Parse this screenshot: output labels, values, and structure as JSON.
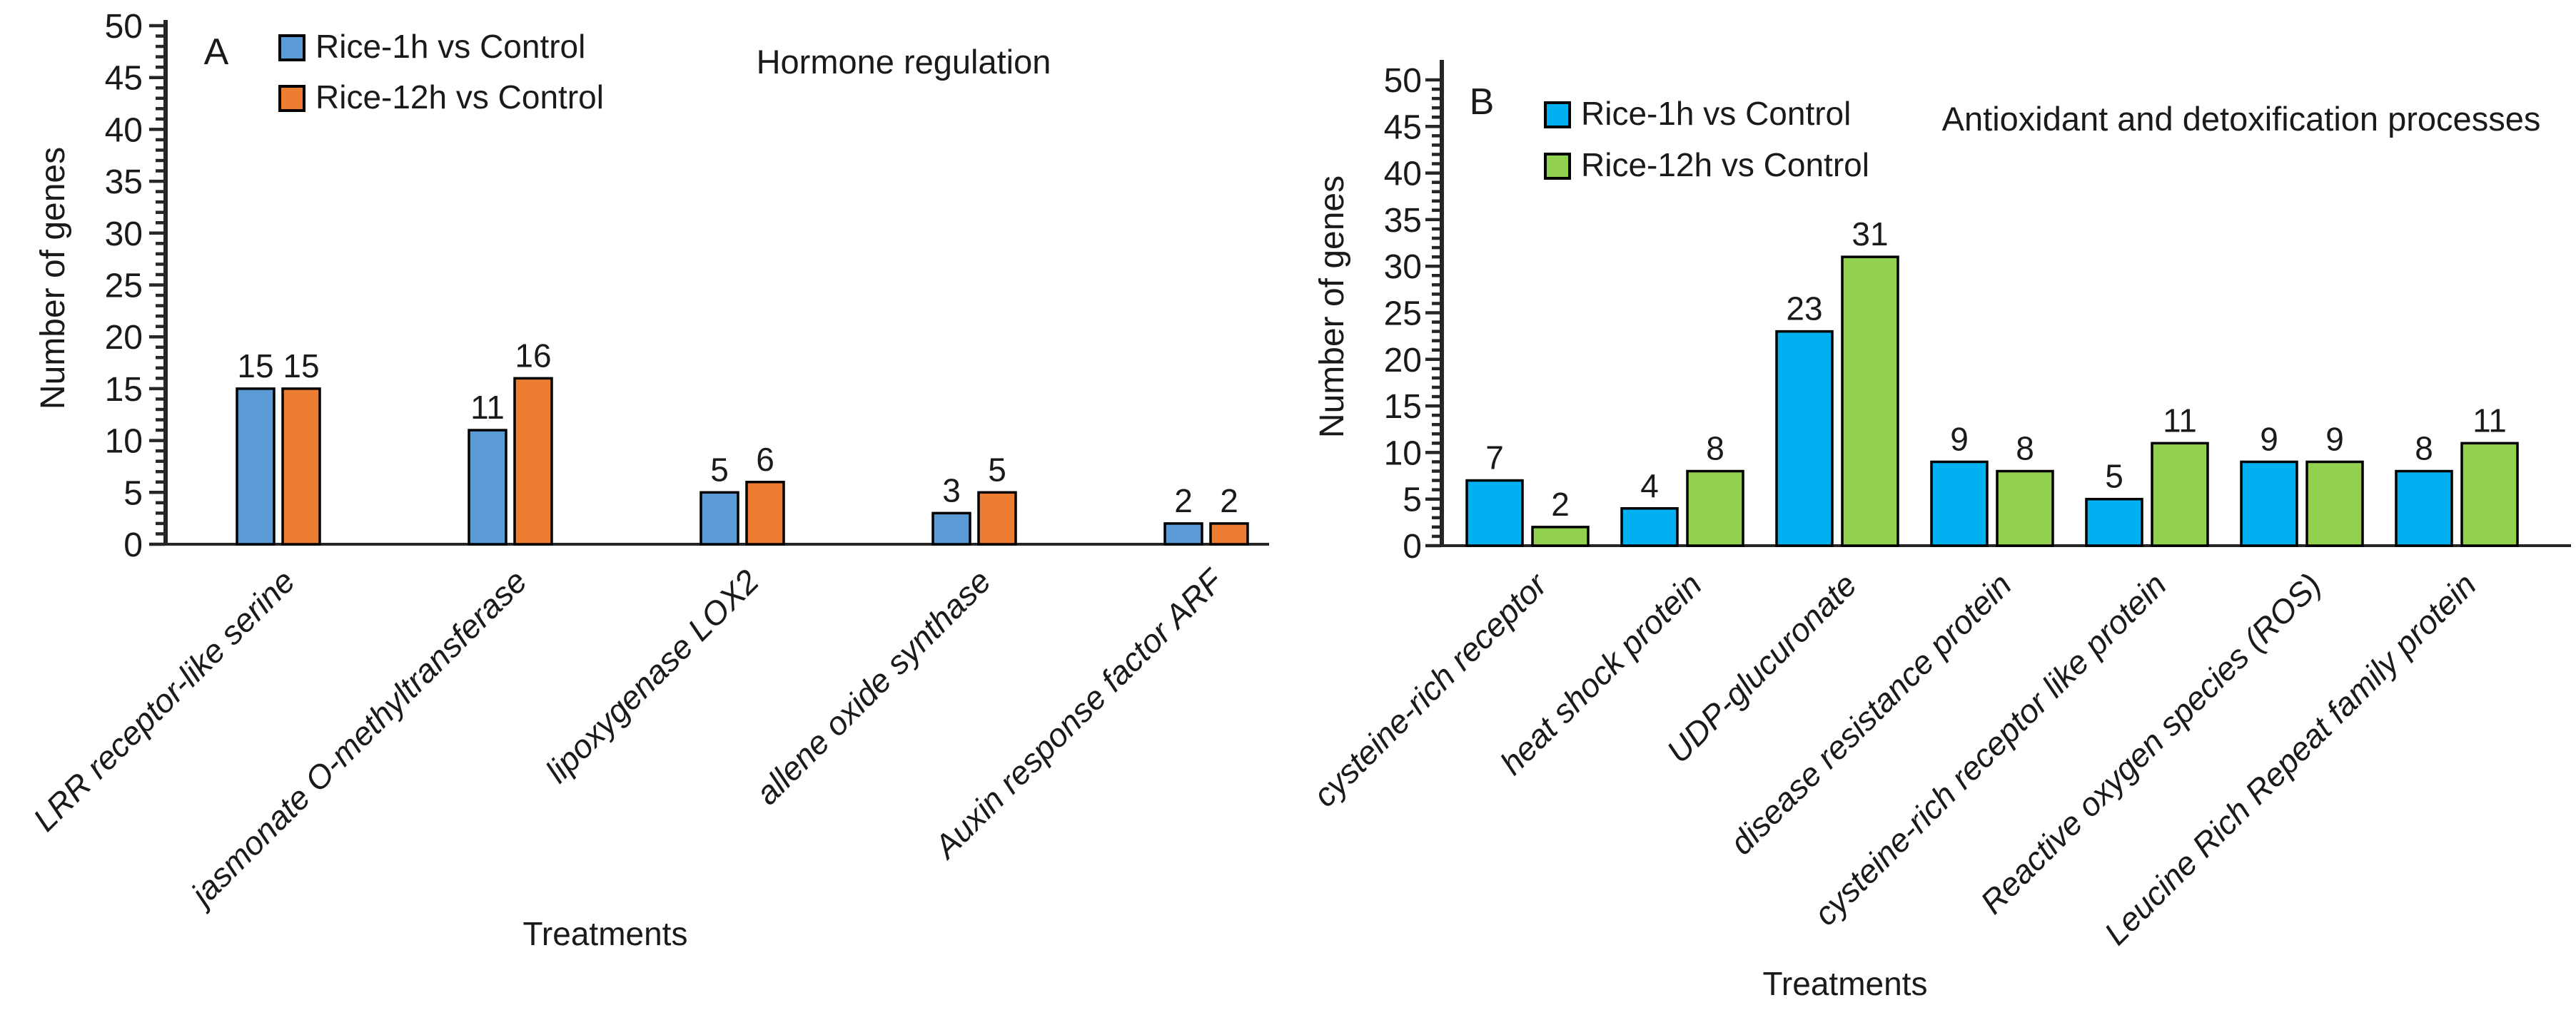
{
  "figure": {
    "background": "#ffffff",
    "panels_count": 2
  },
  "chart_data": [
    {
      "type": "bar",
      "panel_label": "A",
      "title": "Hormone regulation",
      "xlabel": "Treatments",
      "ylabel": "Number of genes",
      "ylim": [
        0,
        50
      ],
      "ytick_step": 5,
      "minor_tick_step": 1,
      "grid": false,
      "legend_position": "top-left",
      "categories": [
        "LRR receptor-like serine",
        "jasmonate O-methyltransferase",
        "lipoxygenase  LOX2",
        "allene oxide synthase",
        "Auxin response factor ARF"
      ],
      "series": [
        {
          "name": "Rice-1h vs Control",
          "color": "#5B9BD5",
          "values": [
            15,
            11,
            5,
            3,
            2
          ]
        },
        {
          "name": "Rice-12h vs Control",
          "color": "#ED7D31",
          "values": [
            15,
            16,
            6,
            5,
            2
          ]
        }
      ]
    },
    {
      "type": "bar",
      "panel_label": "B",
      "title": "Antioxidant and detoxification processes",
      "xlabel": "Treatments",
      "ylabel": "Number of genes",
      "ylim": [
        0,
        50
      ],
      "ytick_step": 5,
      "minor_tick_step": 1,
      "grid": false,
      "legend_position": "top-left",
      "categories": [
        "cysteine-rich receptor",
        "heat shock protein",
        "UDP-glucuronate",
        "disease resistance protein",
        "cysteine-rich receptor like protein",
        "Reactive oxygen species (ROS)",
        "Leucine Rich Repeat family protein"
      ],
      "series": [
        {
          "name": "Rice-1h vs Control",
          "color": "#00B0F0",
          "values": [
            7,
            4,
            23,
            9,
            5,
            9,
            8
          ]
        },
        {
          "name": "Rice-12h vs Control",
          "color": "#92D050",
          "values": [
            2,
            8,
            31,
            8,
            11,
            9,
            11
          ]
        }
      ]
    }
  ]
}
